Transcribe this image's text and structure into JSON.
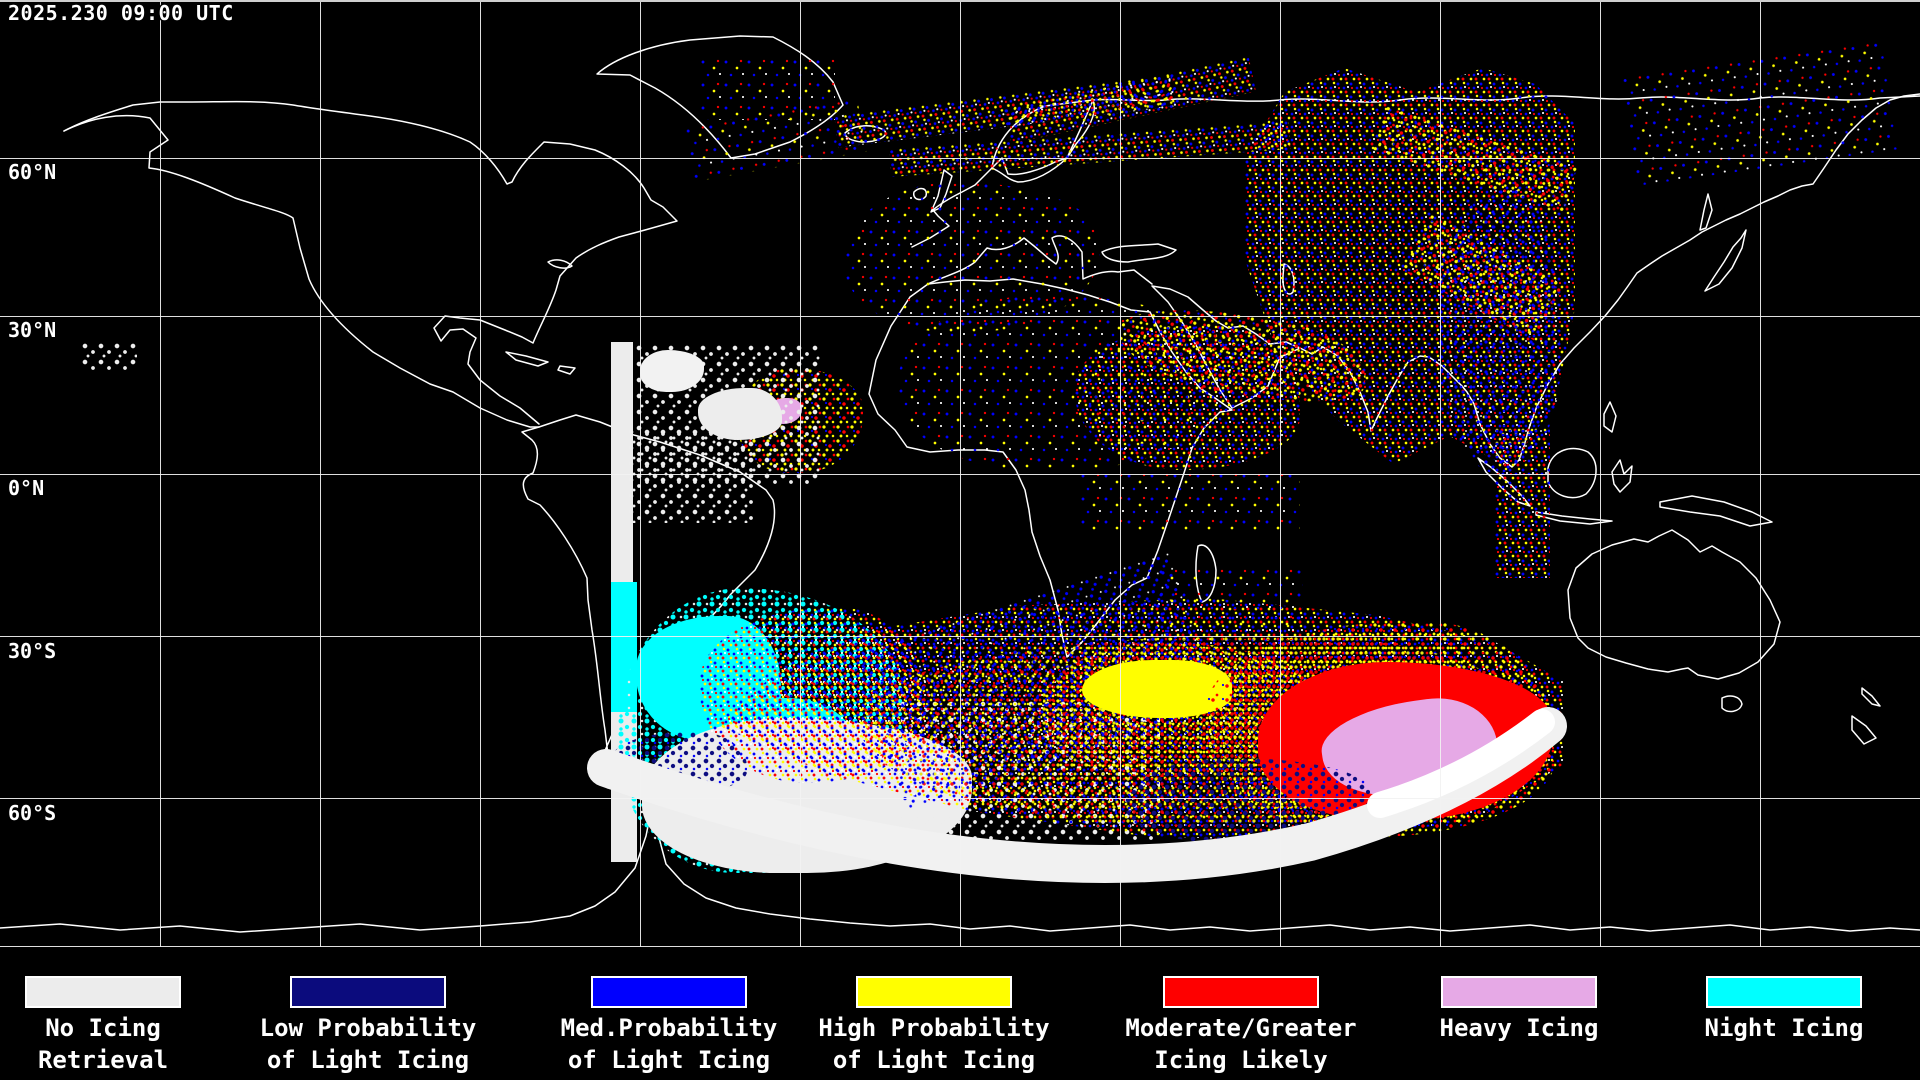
{
  "header": {
    "timestamp": "2025.230 09:00 UTC"
  },
  "map": {
    "latitude_labels": [
      {
        "text": "60°N"
      },
      {
        "text": "30°N"
      },
      {
        "text": "0°N"
      },
      {
        "text": "30°S"
      },
      {
        "text": "60°S"
      }
    ]
  },
  "legend": {
    "items": [
      {
        "line1": "No Icing",
        "line2": "Retrieval",
        "color": "#ececec"
      },
      {
        "line1": "Low Probability",
        "line2": "of Light Icing",
        "color": "#0b0b7d"
      },
      {
        "line1": "Med.Probability",
        "line2": "of Light Icing",
        "color": "#0000fe"
      },
      {
        "line1": "High Probability",
        "line2": "of Light Icing",
        "color": "#fffe00"
      },
      {
        "line1": "Moderate/Greater",
        "line2": "Icing Likely",
        "color": "#fe0000"
      },
      {
        "line1": "Heavy Icing",
        "line2": "",
        "color": "#e6a9e6"
      },
      {
        "line1": "Night Icing",
        "line2": "",
        "color": "#00ffff"
      }
    ]
  }
}
